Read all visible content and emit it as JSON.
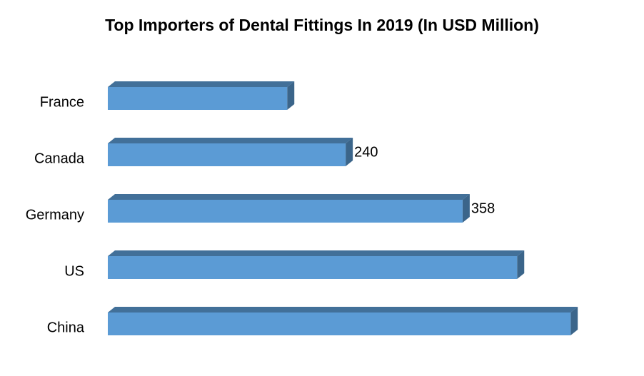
{
  "chart_data": {
    "type": "bar3d-horizontal",
    "title": "Top Importers of Dental Fittings In 2019 (In USD Million)",
    "categories": [
      "France",
      "Canada",
      "Germany",
      "US",
      "China"
    ],
    "values": [
      181,
      240,
      358,
      413,
      467
    ],
    "value_labels": [
      null,
      "240",
      "358",
      null,
      null
    ],
    "color": "#5b9bd5"
  }
}
